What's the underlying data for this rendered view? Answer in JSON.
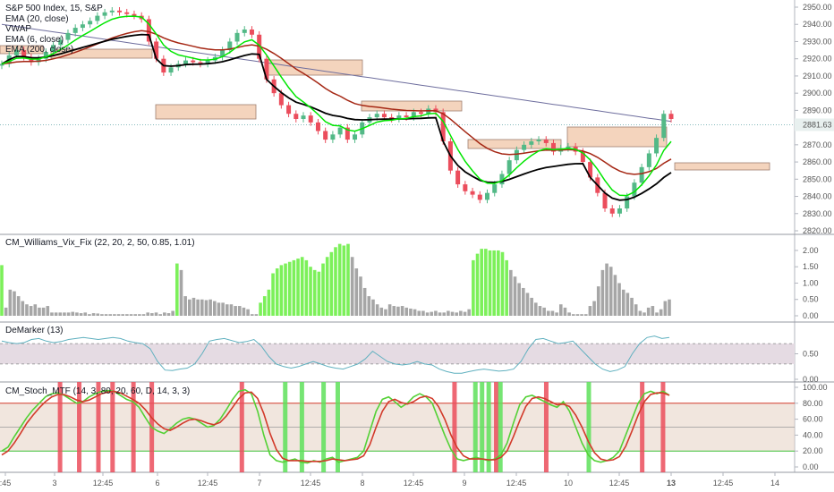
{
  "chart_data": [
    {
      "type": "candlestick",
      "title": "S&P 500 Index, 15, S&P",
      "indicators": [
        "EMA (20, close)",
        "VWAP",
        "EMA (6, close)",
        "EMA (200, close)"
      ],
      "ylim": [
        2818,
        2956
      ],
      "y_ticks": [
        "2950.00",
        "2940.00",
        "2930.00",
        "2920.00",
        "2910.00",
        "2900.00",
        "2890.00",
        "2880.00",
        "2870.00",
        "2860.00",
        "2850.00",
        "2840.00",
        "2830.00",
        "2820.00"
      ],
      "last_price": "2881.63",
      "colors": {
        "up": "#53b987",
        "down": "#eb4d5c",
        "ema20": "#a52714",
        "vwap": "#000000",
        "ema6": "#00e600",
        "ema200": "#6e6e9e",
        "zone": "#f4d4bd"
      },
      "close_path": [
        2917,
        2922,
        2925,
        2921,
        2918,
        2920,
        2924,
        2928,
        2931,
        2935,
        2938,
        2940,
        2942,
        2945,
        2947,
        2948,
        2947,
        2946,
        2945,
        2943,
        2930,
        2920,
        2912,
        2915,
        2917,
        2919,
        2918,
        2917,
        2919,
        2921,
        2925,
        2930,
        2935,
        2937,
        2934,
        2920,
        2908,
        2900,
        2893,
        2888,
        2885,
        2887,
        2883,
        2878,
        2873,
        2876,
        2880,
        2873,
        2876,
        2883,
        2886,
        2888,
        2886,
        2885,
        2887,
        2886,
        2889,
        2888,
        2891,
        2889,
        2872,
        2855,
        2847,
        2843,
        2841,
        2838,
        2842,
        2847,
        2853,
        2861,
        2867,
        2870,
        2872,
        2873,
        2871,
        2866,
        2868,
        2869,
        2866,
        2860,
        2851,
        2842,
        2833,
        2830,
        2833,
        2840,
        2848,
        2857,
        2865,
        2874,
        2888,
        2885
      ]
    },
    {
      "type": "bar",
      "title": "CM_Williams_Vix_Fix (22, 20, 2, 50, 0.85, 1.01)",
      "ylim": [
        0,
        2.3
      ],
      "y_ticks": [
        "2.00",
        "1.50",
        "1.00",
        "0.50",
        "0.00"
      ],
      "colors": {
        "highlight": "#7cf05a",
        "normal": "#a6a6a6"
      },
      "values": [
        1.55,
        0.25,
        0.8,
        0.75,
        0.6,
        0.45,
        0.35,
        0.3,
        0.35,
        0.25,
        0.25,
        0.3,
        0.1,
        0.1,
        0.1,
        0.1,
        0.1,
        0.12,
        0.1,
        0.08,
        0.1,
        0.05,
        0.08,
        0.07,
        0.05,
        0.05,
        0.05,
        0.05,
        0.05,
        0.05,
        0.05,
        0.05,
        0.05,
        0.05,
        0.05,
        0.1,
        0.08,
        0.1,
        0.05,
        0.1,
        0.08,
        0.15,
        1.6,
        1.4,
        0.6,
        0.5,
        0.55,
        0.5,
        0.5,
        0.48,
        0.5,
        0.45,
        0.4,
        0.4,
        0.35,
        0.35,
        0.3,
        0.3,
        0.25,
        0.2,
        0.05,
        0.05,
        0.4,
        0.6,
        0.8,
        1.3,
        1.45,
        1.55,
        1.6,
        1.65,
        1.7,
        1.75,
        1.8,
        1.7,
        1.5,
        1.4,
        1.35,
        1.6,
        1.8,
        1.95,
        2.1,
        2.2,
        2.15,
        2.2,
        1.8,
        1.45,
        1.2,
        0.85,
        0.6,
        0.5,
        0.35,
        0.25,
        0.2,
        0.35,
        0.3,
        0.28,
        0.3,
        0.25,
        0.22,
        0.2,
        0.15,
        0.15,
        0.1,
        0.12,
        0.15,
        0.1,
        0.1,
        0.15,
        0.12,
        0.1,
        0.15,
        0.12,
        0.2,
        1.7,
        1.9,
        2.05,
        2.05,
        2.0,
        2.0,
        2.0,
        1.95,
        1.7,
        1.4,
        1.2,
        1.0,
        0.85,
        0.7,
        0.55,
        0.4,
        0.3,
        0.25,
        0.15,
        0.15,
        0.1,
        0.35,
        0.25,
        0.1,
        0.05,
        0.05,
        0.05,
        0.05,
        0.3,
        0.45,
        0.9,
        1.4,
        1.6,
        1.5,
        1.25,
        1.0,
        0.8,
        0.7,
        0.55,
        0.35,
        0.15,
        0.1,
        0.25,
        0.3,
        0.1,
        0.2,
        0.45,
        0.5
      ],
      "highlight_ranges": [
        [
          0,
          0
        ],
        [
          42,
          42
        ],
        [
          62,
          83
        ],
        [
          113,
          121
        ]
      ]
    },
    {
      "type": "line",
      "title": "DeMarker (13)",
      "ylim": [
        0,
        1
      ],
      "y_ticks": [
        "0.50",
        "0.00"
      ],
      "levels": [
        0.7,
        0.3
      ],
      "colors": {
        "line": "#5fb0bf",
        "band": "#e5dbe3"
      },
      "values": [
        0.75,
        0.72,
        0.7,
        0.72,
        0.78,
        0.8,
        0.75,
        0.72,
        0.74,
        0.78,
        0.8,
        0.82,
        0.8,
        0.78,
        0.8,
        0.82,
        0.8,
        0.75,
        0.72,
        0.7,
        0.6,
        0.35,
        0.18,
        0.17,
        0.2,
        0.22,
        0.3,
        0.5,
        0.75,
        0.78,
        0.8,
        0.76,
        0.72,
        0.74,
        0.78,
        0.65,
        0.45,
        0.3,
        0.25,
        0.22,
        0.25,
        0.3,
        0.35,
        0.3,
        0.25,
        0.22,
        0.2,
        0.25,
        0.3,
        0.4,
        0.55,
        0.45,
        0.35,
        0.3,
        0.28,
        0.3,
        0.35,
        0.3,
        0.28,
        0.2,
        0.15,
        0.12,
        0.12,
        0.15,
        0.18,
        0.2,
        0.18,
        0.16,
        0.17,
        0.2,
        0.35,
        0.6,
        0.78,
        0.8,
        0.75,
        0.7,
        0.72,
        0.75,
        0.6,
        0.45,
        0.3,
        0.2,
        0.15,
        0.18,
        0.25,
        0.5,
        0.7,
        0.82,
        0.85,
        0.8,
        0.82
      ]
    },
    {
      "type": "line",
      "title": "CM_Stoch_MTF (14, 3, 80, 20, 60, D, 14, 3, 3)",
      "ylim": [
        0,
        100
      ],
      "y_ticks": [
        "100.00",
        "80.00",
        "60.00",
        "40.00",
        "20.00",
        "0.00"
      ],
      "levels": [
        80,
        20,
        50
      ],
      "colors": {
        "k": "#54d136",
        "d": "#d23a2a",
        "band": "#e8d6c8",
        "red": "#eb4d5c",
        "green": "#5ee05a"
      },
      "k_values": [
        20,
        25,
        38,
        50,
        62,
        72,
        80,
        88,
        92,
        93,
        90,
        85,
        80,
        82,
        88,
        92,
        95,
        96,
        95,
        90,
        85,
        82,
        75,
        62,
        50,
        45,
        42,
        48,
        55,
        60,
        62,
        60,
        55,
        50,
        52,
        60,
        72,
        85,
        95,
        97,
        92,
        70,
        40,
        15,
        8,
        6,
        8,
        10,
        6,
        5,
        8,
        6,
        10,
        12,
        6,
        8,
        10,
        12,
        20,
        45,
        70,
        85,
        88,
        82,
        75,
        80,
        88,
        92,
        88,
        80,
        60,
        40,
        22,
        10,
        8,
        10,
        12,
        10,
        8,
        10,
        15,
        30,
        55,
        78,
        88,
        90,
        86,
        82,
        78,
        75,
        82,
        70,
        50,
        30,
        15,
        8,
        6,
        8,
        12,
        20,
        40,
        60,
        80,
        92,
        95,
        92,
        95,
        90
      ],
      "d_values": [
        15,
        20,
        30,
        42,
        55,
        65,
        74,
        82,
        88,
        91,
        91,
        88,
        84,
        82,
        84,
        88,
        92,
        94,
        95,
        93,
        89,
        85,
        80,
        72,
        62,
        54,
        48,
        46,
        50,
        55,
        59,
        60,
        58,
        55,
        53,
        56,
        64,
        75,
        86,
        93,
        94,
        86,
        67,
        42,
        22,
        11,
        8,
        8,
        8,
        7,
        7,
        7,
        8,
        10,
        9,
        8,
        9,
        10,
        14,
        28,
        50,
        70,
        82,
        85,
        81,
        79,
        82,
        87,
        89,
        86,
        76,
        60,
        40,
        24,
        14,
        10,
        10,
        10,
        9,
        9,
        12,
        20,
        38,
        58,
        76,
        86,
        88,
        86,
        82,
        78,
        79,
        76,
        65,
        50,
        32,
        18,
        10,
        8,
        9,
        13,
        26,
        45,
        65,
        82,
        91,
        93,
        93,
        90
      ],
      "red_bars": [
        0.072,
        0.095,
        0.118,
        0.135,
        0.16,
        0.182,
        0.29,
        0.545,
        0.595,
        0.655,
        0.77,
        0.795
      ],
      "green_bars": [
        0.342,
        0.362,
        0.388,
        0.405,
        0.57,
        0.578,
        0.586,
        0.6,
        0.706
      ]
    }
  ],
  "time_axis": [
    ":45",
    "3",
    "12:45",
    "6",
    "12:45",
    "7",
    "12:45",
    "8",
    "12:45",
    "9",
    "12:45",
    "10",
    "12:45",
    "13",
    "12:45",
    "14"
  ]
}
